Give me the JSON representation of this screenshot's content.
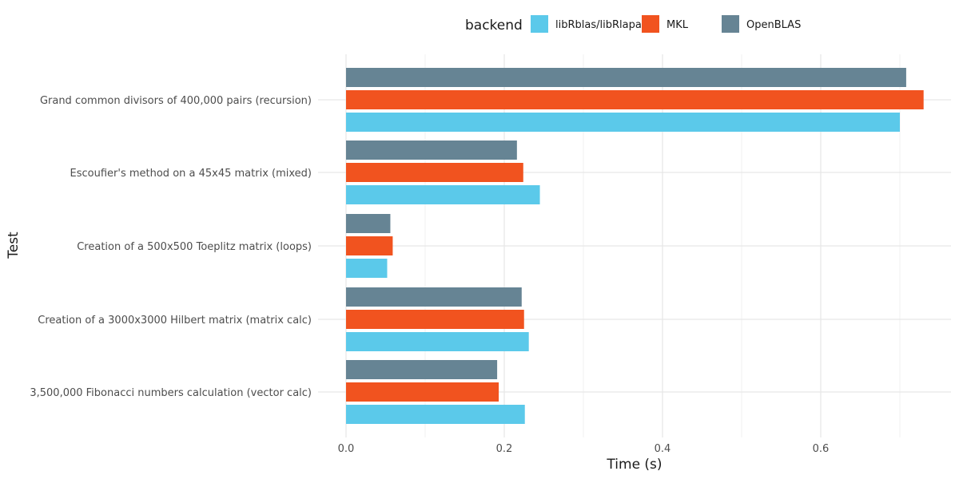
{
  "chart_data": {
    "type": "bar",
    "orientation": "horizontal",
    "title": "",
    "xlabel": "Time (s)",
    "ylabel": "Test",
    "xlim": [
      0,
      0.76
    ],
    "xticks": [
      0.0,
      0.2,
      0.4,
      0.6
    ],
    "xtick_labels": [
      "0.0",
      "0.2",
      "0.4",
      "0.6"
    ],
    "grid": true,
    "legend": {
      "title": "backend",
      "position": "top"
    },
    "categories": [
      "Grand common divisors of 400,000 pairs (recursion)",
      "Escoufier's method on a 45x45 matrix (mixed)",
      "Creation of a 500x500 Toeplitz matrix (loops)",
      "Creation of a 3000x3000 Hilbert matrix (matrix calc)",
      "3,500,000 Fibonacci numbers calculation (vector calc)"
    ],
    "series": [
      {
        "name": "libRblas/libRlapack",
        "color": "#5bc9ea",
        "values": [
          0.7,
          0.245,
          0.052,
          0.231,
          0.226
        ]
      },
      {
        "name": "MKL",
        "color": "#f1531f",
        "values": [
          0.73,
          0.224,
          0.059,
          0.225,
          0.193
        ]
      },
      {
        "name": "OpenBLAS",
        "color": "#668494",
        "values": [
          0.708,
          0.216,
          0.056,
          0.222,
          0.191
        ]
      }
    ]
  }
}
